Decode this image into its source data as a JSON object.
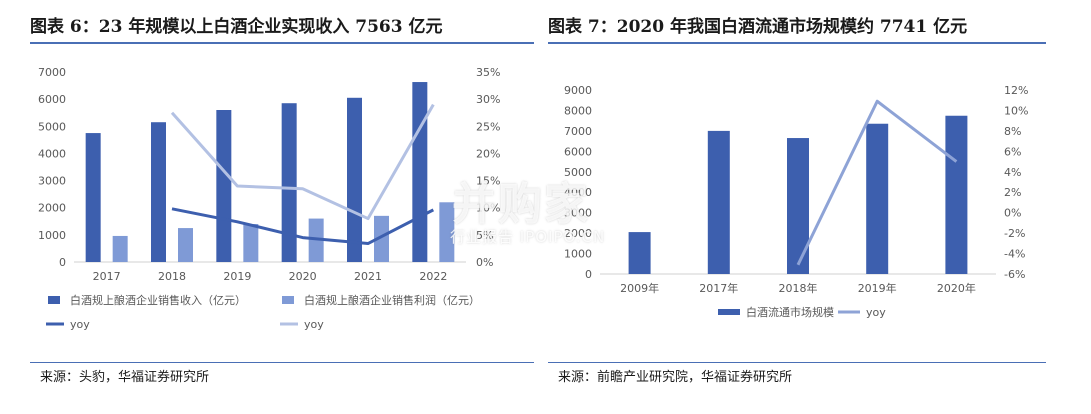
{
  "left": {
    "title": "图表 6：23 年规模以上白酒企业实现收入 7563 亿元",
    "source": "来源：头豹，华福证券研究所"
  },
  "right": {
    "title": "图表 7：2020 年我国白酒流通市场规模约 7741 亿元",
    "source": "来源：前瞻产业研究院，华福证券研究所"
  },
  "watermark": {
    "main": "并购家",
    "sub": "行业报告 IPOIPO.CN"
  },
  "colors": {
    "dark_blue": "#3d5fae",
    "mid_blue": "#7f9ad6",
    "light_blue": "#b3c1e3",
    "line_blue": "#8ea3d6"
  },
  "chart_data": [
    {
      "type": "bar",
      "categories": [
        "2017",
        "2018",
        "2019",
        "2020",
        "2021",
        "2022"
      ],
      "ylim": [
        0,
        7000
      ],
      "yticks": [
        0,
        1000,
        2000,
        3000,
        4000,
        5000,
        6000,
        7000
      ],
      "y2lim": [
        0,
        35
      ],
      "y2ticks": [
        "0%",
        "5%",
        "10%",
        "15%",
        "20%",
        "25%",
        "30%",
        "35%"
      ],
      "series": [
        {
          "name": "白酒规上酿酒企业销售收入（亿元）",
          "type": "bar",
          "axis": "left",
          "values": [
            4750,
            5150,
            5600,
            5850,
            6050,
            6630
          ]
        },
        {
          "name": "白酒规上酿酒企业销售利润（亿元）",
          "type": "bar",
          "axis": "left",
          "values": [
            960,
            1250,
            1400,
            1600,
            1700,
            2200
          ]
        },
        {
          "name": "yoy",
          "type": "line",
          "axis": "right",
          "values": [
            null,
            9.8,
            7.4,
            4.5,
            3.4,
            9.6
          ]
        },
        {
          "name": "yoy",
          "type": "line",
          "axis": "right",
          "values": [
            null,
            27.5,
            14.0,
            13.5,
            8.0,
            29.0
          ]
        }
      ]
    },
    {
      "type": "bar",
      "categories": [
        "2009年",
        "2017年",
        "2018年",
        "2019年",
        "2020年"
      ],
      "ylim": [
        0,
        9000
      ],
      "yticks": [
        0,
        1000,
        2000,
        3000,
        4000,
        5000,
        6000,
        7000,
        8000,
        9000
      ],
      "y2lim": [
        -6,
        12
      ],
      "y2ticks": [
        "-6%",
        "-4%",
        "-2%",
        "0%",
        "2%",
        "4%",
        "6%",
        "8%",
        "10%",
        "12%"
      ],
      "series": [
        {
          "name": "白酒流通市场规模",
          "type": "bar",
          "axis": "left",
          "values": [
            2050,
            7000,
            6650,
            7350,
            7741
          ]
        },
        {
          "name": "yoy",
          "type": "line",
          "axis": "right",
          "values": [
            null,
            null,
            -5.1,
            10.9,
            5.0
          ]
        }
      ]
    }
  ]
}
